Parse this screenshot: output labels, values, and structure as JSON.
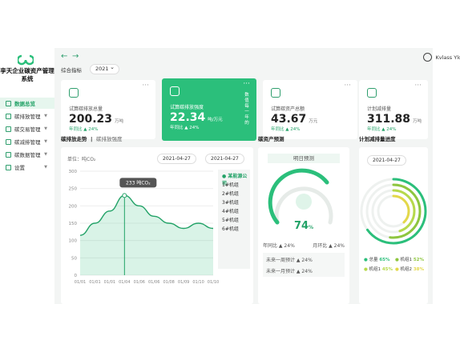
{
  "brand": {
    "name": "孪天企业碳资产管理系统"
  },
  "nav": [
    {
      "label": "数据总览",
      "active": true
    },
    {
      "label": "碳排放管理"
    },
    {
      "label": "碳交易管理"
    },
    {
      "label": "碳减排管理"
    },
    {
      "label": "碳数据管理"
    },
    {
      "label": "设置"
    }
  ],
  "user": {
    "name": "Kvlass Ylo"
  },
  "filter": {
    "label": "综合指标",
    "year": "2021"
  },
  "cards": [
    {
      "label": "试算碳排放总量",
      "value": "200.23",
      "unit": "万吨",
      "yoy": "年同比 ▲ 24%"
    },
    {
      "label": "试算碳排放强度",
      "value": "22.34",
      "unit": "吨/万元",
      "yoy": "年同比 ▲ 24%",
      "side": "数值每一年的"
    },
    {
      "label": "试算碳资产总额",
      "value": "43.67",
      "unit": "万元",
      "yoy": "年同比 ▲ 24%"
    },
    {
      "label": "计划减排量",
      "value": "311.88",
      "unit": "万吨",
      "yoy": "年同比 ▲ 24%"
    }
  ],
  "trend": {
    "title": "碳排放走势",
    "subtitle": "碳排放强度",
    "unit": "单位：吨CO₂",
    "date1": "2021-04-27",
    "date2": "2021-04-27",
    "tooltip": "233 吨CO₂"
  },
  "chart_data": {
    "type": "area",
    "x": [
      "01/01",
      "01/01",
      "01/01",
      "01/04",
      "01/06",
      "01/06",
      "01/08",
      "01/09",
      "01/10",
      "01/10"
    ],
    "series": [
      {
        "values": [
          115,
          150,
          185,
          230,
          200,
          170,
          150,
          135,
          150,
          135
        ]
      }
    ],
    "ylim": [
      0,
      300
    ],
    "yticks": [
      0,
      50,
      100,
      150,
      200,
      250,
      300
    ],
    "legend": [
      "某能源公司",
      "1#机组",
      "2#机组",
      "3#机组",
      "4#机组",
      "5#机组",
      "6#机组"
    ]
  },
  "assets": {
    "title": "碳资产预测",
    "sublabel": "明日预测",
    "percent": "74",
    "stat_left": "年同比 ▲ 24%",
    "stat_right": "月环比 ▲ 24%",
    "row1": "未来一周预计 ▲ 24%",
    "row2": "未来一月预计 ▲ 24%"
  },
  "progress": {
    "title": "计划减排量进度",
    "date": "2021-04-27",
    "items": [
      {
        "label": "总量",
        "value": "65%",
        "color": "#2bbf7b"
      },
      {
        "label": "机组1",
        "value": "52%",
        "color": "#8ec63f"
      },
      {
        "label": "机组1",
        "value": "45%",
        "color": "#b6d94c"
      },
      {
        "label": "机组2",
        "value": "38%",
        "color": "#e3d84a"
      }
    ]
  }
}
